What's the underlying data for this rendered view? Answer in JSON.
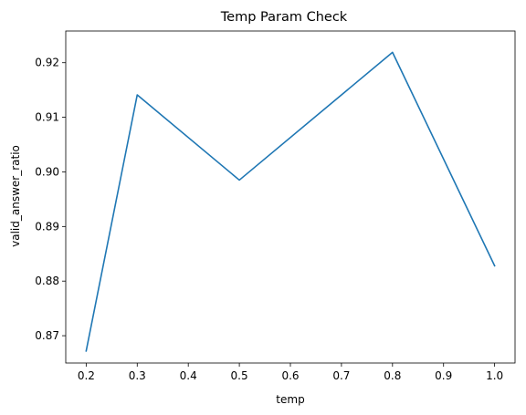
{
  "chart_data": {
    "type": "line",
    "title": "Temp Param Check",
    "xlabel": "temp",
    "ylabel": "valid_answer_ratio",
    "x": [
      0.2,
      0.3,
      0.5,
      0.8,
      1.0
    ],
    "series": [
      {
        "values": [
          0.8672,
          0.9141,
          0.8985,
          0.9219,
          0.8828
        ],
        "color": "#1f77b4"
      }
    ],
    "xlim": [
      0.16,
      1.04
    ],
    "ylim": [
      0.865,
      0.9258
    ],
    "xticks": [
      0.2,
      0.3,
      0.4,
      0.5,
      0.6,
      0.7,
      0.8,
      0.9,
      1.0
    ],
    "xtick_labels": [
      "0.2",
      "0.3",
      "0.4",
      "0.5",
      "0.6",
      "0.7",
      "0.8",
      "0.9",
      "1.0"
    ],
    "yticks": [
      0.87,
      0.88,
      0.89,
      0.9,
      0.91,
      0.92
    ],
    "ytick_labels": [
      "0.87",
      "0.88",
      "0.89",
      "0.90",
      "0.91",
      "0.92"
    ],
    "grid": false,
    "legend": false
  }
}
